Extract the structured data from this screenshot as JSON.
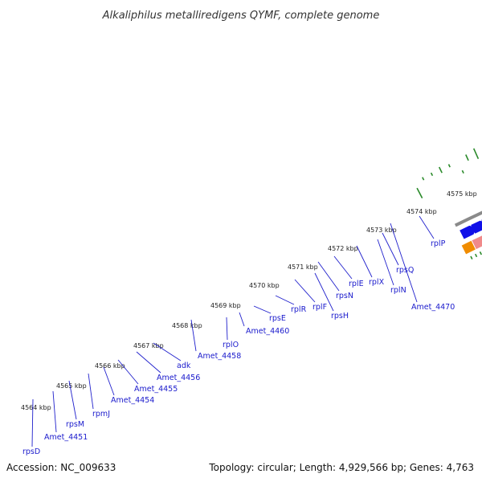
{
  "title": "Alkaliphilus metalliredigens QYMF, complete genome",
  "footer": {
    "accession": "Accession: NC_009633",
    "stats": "Topology: circular; Length: 4,929,566 bp; Genes: 4,763"
  },
  "colors": {
    "background": "#ffffff",
    "backbone": "#8a8a8a",
    "forward_cds": "#1010e8",
    "reverse_cds": "#f08a8a",
    "rRNA_highlight_cyan": "#22b4e8",
    "highlight_green": "#9ee02a",
    "highlight_orange": "#f08c00",
    "gc_ticks": "#2a8a2a",
    "labels": "#1a1acc"
  },
  "kbp_ticks": [
    {
      "label": "4564 kbp"
    },
    {
      "label": "4565 kbp"
    },
    {
      "label": "4566 kbp"
    },
    {
      "label": "4567 kbp"
    },
    {
      "label": "4568 kbp"
    },
    {
      "label": "4569 kbp"
    },
    {
      "label": "4570 kbp"
    },
    {
      "label": "4571 kbp"
    },
    {
      "label": "4572 kbp"
    },
    {
      "label": "4573 kbp"
    },
    {
      "label": "4574 kbp"
    },
    {
      "label": "4575 kbp"
    }
  ],
  "gene_labels": [
    {
      "name": "rpsD"
    },
    {
      "name": "Amet_4451"
    },
    {
      "name": "rpsM"
    },
    {
      "name": "rpmJ"
    },
    {
      "name": "Amet_4454"
    },
    {
      "name": "Amet_4455"
    },
    {
      "name": "Amet_4456"
    },
    {
      "name": "adk"
    },
    {
      "name": "Amet_4458"
    },
    {
      "name": "rplO"
    },
    {
      "name": "Amet_4460"
    },
    {
      "name": "rpsE"
    },
    {
      "name": "rplR"
    },
    {
      "name": "rplF"
    },
    {
      "name": "rpsH"
    },
    {
      "name": "rpsN"
    },
    {
      "name": "rplE"
    },
    {
      "name": "rplX"
    },
    {
      "name": "rplN"
    },
    {
      "name": "rpsQ"
    },
    {
      "name": "Amet_4470"
    },
    {
      "name": "rplP"
    }
  ]
}
